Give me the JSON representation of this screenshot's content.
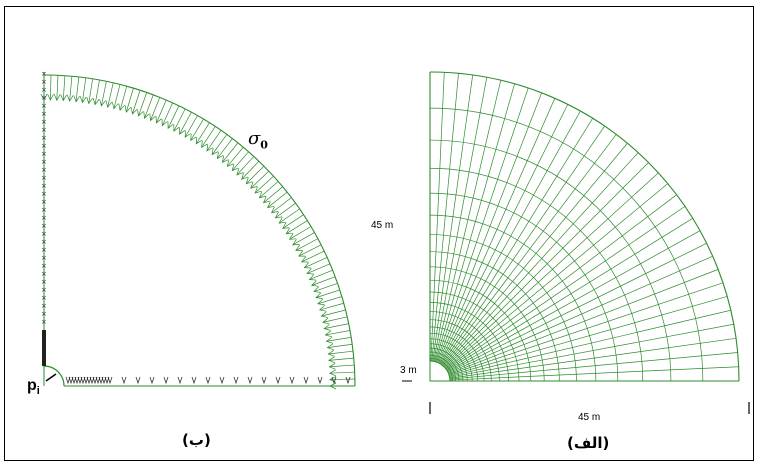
{
  "figure": {
    "colors": {
      "mesh": "#2e8b2e",
      "frame": "#000000",
      "text": "#000000"
    },
    "left_panel": {
      "caption": "(ب)",
      "stress_label": "σ",
      "stress_label_sub": "0",
      "pressure_label": "p",
      "pressure_label_sub": "i"
    },
    "right_panel": {
      "caption": "(الف)",
      "height_label": "45 m",
      "width_label": "45 m",
      "radius_label": "3 m"
    }
  }
}
